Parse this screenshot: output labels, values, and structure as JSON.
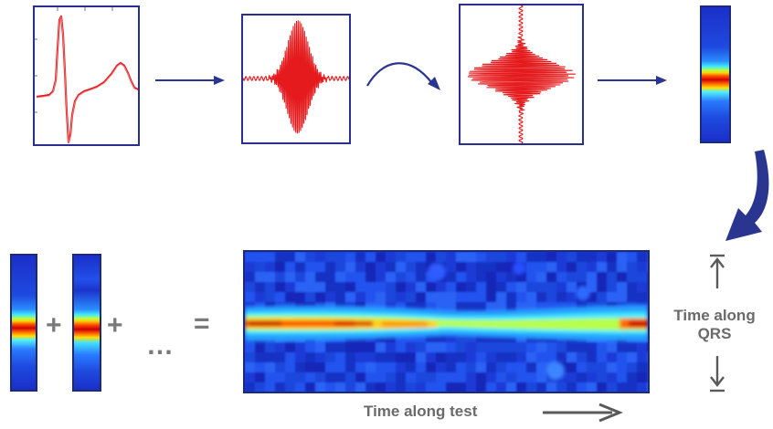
{
  "operators": {
    "plus_1": "+",
    "plus_2": "+",
    "ellipsis": "…",
    "equals": "="
  },
  "labels": {
    "time_along_qrs_line1": "Time along",
    "time_along_qrs_line2": "QRS",
    "time_along_test": "Time along test"
  },
  "colors": {
    "panel_border": "#2a2f8f",
    "signal": "#e41a1c",
    "flow_arrow": "#2a3590",
    "axis_arrow": "#5a5a5a",
    "label_text": "#6a6a6a"
  },
  "icons": {
    "flow_arrows": "right-arrow",
    "curved_flow_arrow": "curved-arrow",
    "big_curved_arrow": "curved-down-left-arrow",
    "axis_arrows": "bracketed-vertical-arrows",
    "test_arrow": "right-arrow"
  }
}
